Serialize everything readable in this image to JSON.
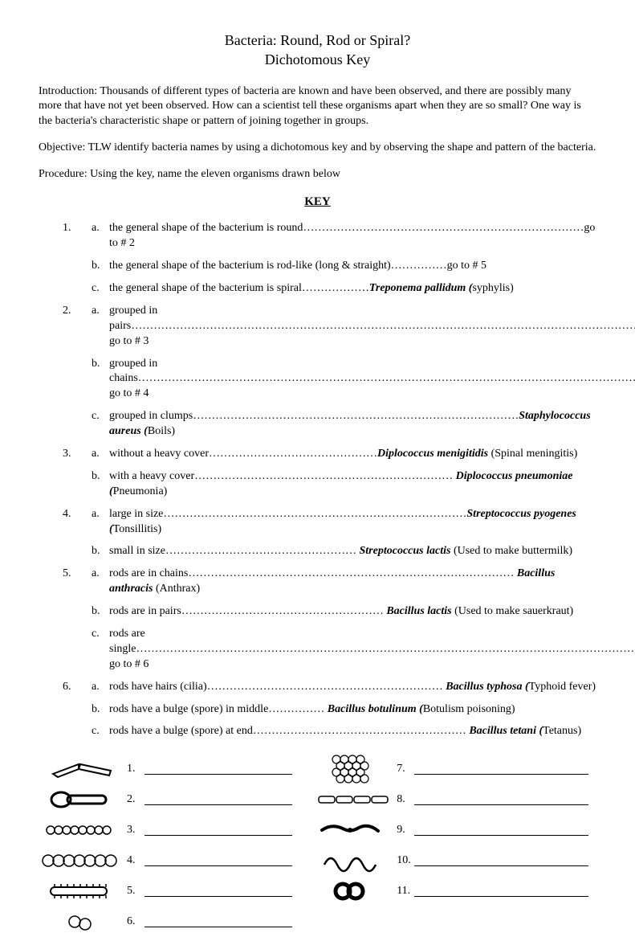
{
  "title": {
    "line1": "Bacteria: Round, Rod or Spiral?",
    "line2": "Dichotomous Key"
  },
  "intro": "Introduction: Thousands of different types of bacteria are known and have been observed, and there are possibly many more that have not yet been observed. How can a scientist tell these organisms apart when they are so small? One way is the bacteria's characteristic shape or pattern of joining together in groups.",
  "objective": "Objective: TLW identify bacteria names by using a dichotomous key and by observing the shape and pattern of the bacteria.",
  "procedure": "Procedure: Using the key, name the eleven organisms drawn below",
  "key_heading": "KEY",
  "key": [
    {
      "num": "1.",
      "rows": [
        {
          "l": "a.",
          "pre": "the general shape of the bacterium is round",
          "name": "",
          "note": "",
          "goto": "go to # 2"
        },
        {
          "l": "b.",
          "pre": " the general shape of the bacterium  is rod-like (long & straight)",
          "name": "",
          "note": "",
          "goto": "go to # 5"
        },
        {
          "l": "c.",
          "pre": " the general shape of the bacterium is spiral",
          "name": "Treponema pallidum (",
          "note": "syphylis)",
          "goto": ""
        }
      ]
    },
    {
      "num": "2.",
      "rows": [
        {
          "l": "a.",
          "pre": "grouped in pairs",
          "name": "",
          "note": "",
          "goto": "go to # 3"
        },
        {
          "l": "b.",
          "pre": " grouped in chains",
          "name": "",
          "note": "",
          "goto": "go to # 4"
        },
        {
          "l": "c.",
          "pre": " grouped in clumps",
          "name": "Staphylococcus aureus (",
          "note": "Boils)",
          "goto": ""
        }
      ]
    },
    {
      "num": "3.",
      "rows": [
        {
          "l": "a.",
          "pre": "without a heavy cover",
          "name": "Diplococcus menigitidis",
          "note": " (Spinal meningitis)",
          "goto": ""
        },
        {
          "l": "b.",
          "pre": " with a heavy cover",
          "name": " Diplococcus pneumoniae (",
          "note": "Pneumonia)",
          "goto": ""
        }
      ]
    },
    {
      "num": "4.",
      "rows": [
        {
          "l": "a.",
          "pre": "large in size",
          "name": "Streptococcus pyogenes (",
          "note": "Tonsillitis)",
          "goto": ""
        },
        {
          "l": "b.",
          "pre": " small in size",
          "name": " Streptococcus lactis",
          "note": " (Used to make buttermilk)",
          "goto": ""
        }
      ]
    },
    {
      "num": "5.",
      "rows": [
        {
          "l": "a.",
          "pre": "rods are in chains",
          "name": " Bacillus anthracis",
          "note": " (Anthrax)",
          "goto": ""
        },
        {
          "l": "b.",
          "pre": " rods are in pairs",
          "name": " Bacillus lactis",
          "note": " (Used to make sauerkraut)",
          "goto": ""
        },
        {
          "l": "c.",
          "pre": " rods are single",
          "name": "",
          "note": "",
          "goto": "go to # 6"
        }
      ]
    },
    {
      "num": "6.",
      "rows": [
        {
          "l": "a.",
          "pre": "rods have hairs (cilia)",
          "name": " Bacillus typhosa (",
          "note": "Typhoid fever)",
          "goto": ""
        },
        {
          "l": "b.",
          "pre": " rods have a bulge (spore) in middle",
          "name": " Bacillus botulinum (",
          "note": "Botulism poisoning)",
          "goto": ""
        },
        {
          "l": "c.",
          "pre": " rods have a bulge (spore) at end",
          "name": " Bacillus tetani (",
          "note": "Tetanus)",
          "goto": ""
        }
      ]
    }
  ],
  "answers_left": [
    "1.",
    "2.",
    "3.",
    "4.",
    "5.",
    "6."
  ],
  "answers_right": [
    "7.",
    "8.",
    "9.",
    "10.",
    "11."
  ]
}
